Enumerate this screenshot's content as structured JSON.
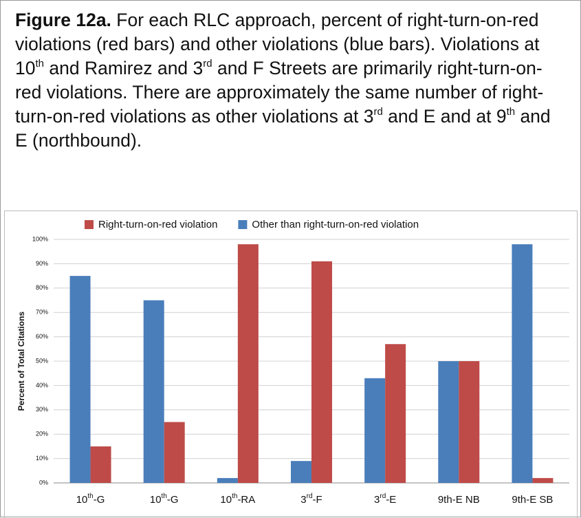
{
  "chart_data": {
    "type": "bar",
    "caption": {
      "label": "Figure 12a.",
      "parts": [
        " For each RLC approach, percent of right-turn-on-red violations (red bars) and other violations (blue bars). Violations at 10",
        {
          "sup": "th"
        },
        " and Ramirez and 3",
        {
          "sup": "rd"
        },
        " and F Streets are primarily right-turn-on-red violations. There are approximately the same number of right-turn-on-red violations as other violations at 3",
        {
          "sup": "rd"
        },
        " and E and at 9",
        {
          "sup": "th"
        },
        " and E (northbound)."
      ]
    },
    "y_label": "Percent of Total Citations",
    "categories": [
      [
        "10",
        {
          "sup": "th"
        },
        "-G"
      ],
      [
        "10",
        {
          "sup": "th"
        },
        "-G"
      ],
      [
        "10",
        {
          "sup": "th"
        },
        "-RA"
      ],
      [
        "3",
        {
          "sup": "rd"
        },
        "-F"
      ],
      [
        "3",
        {
          "sup": "rd"
        },
        "-E"
      ],
      [
        "9th-E NB"
      ],
      [
        "9th-E SB"
      ]
    ],
    "series": [
      {
        "name": "Other than right-turn-on-red violation",
        "color": "#4a7ebb",
        "values": [
          85,
          75,
          2,
          9,
          43,
          50,
          98
        ]
      },
      {
        "name": "Right-turn-on-red violation",
        "color": "#be4b48",
        "values": [
          15,
          25,
          98,
          91,
          57,
          50,
          2
        ]
      }
    ],
    "legend_order": [
      1,
      0
    ],
    "ylim": [
      0,
      100
    ],
    "yticks": [
      {
        "value": 0,
        "label": "0%"
      },
      {
        "value": 10,
        "label": "10%"
      },
      {
        "value": 20,
        "label": "20%"
      },
      {
        "value": 30,
        "label": "30%"
      },
      {
        "value": 40,
        "label": "40%"
      },
      {
        "value": 50,
        "label": "50%"
      },
      {
        "value": 60,
        "label": "60%"
      },
      {
        "value": 70,
        "label": "70%"
      },
      {
        "value": 80,
        "label": "80%"
      },
      {
        "value": 90,
        "label": "90%"
      },
      {
        "value": 100,
        "label": "100%"
      }
    ],
    "grid": true
  }
}
